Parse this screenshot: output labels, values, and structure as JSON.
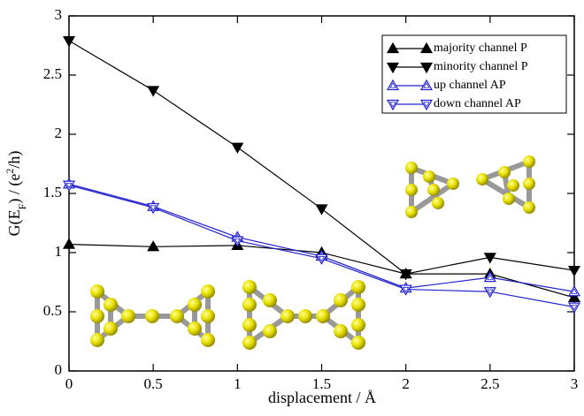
{
  "chart_data": {
    "type": "line",
    "xlabel": "displacement / Å",
    "ylabel": [
      "G(E",
      "F",
      ") / (e",
      "2",
      "/h)"
    ],
    "x": [
      0,
      0.5,
      1,
      1.5,
      2,
      2.5,
      3
    ],
    "xlim": [
      0,
      3
    ],
    "ylim": [
      0,
      3
    ],
    "xticks": [
      0,
      0.5,
      1,
      1.5,
      2,
      2.5,
      3
    ],
    "yticks": [
      0,
      0.5,
      1,
      1.5,
      2,
      2.5,
      3
    ],
    "legend": "upper right",
    "series": [
      {
        "name": "majority channel P",
        "color": "#000000",
        "marker": "up",
        "filled": true,
        "values": [
          1.07,
          1.05,
          1.06,
          1.0,
          0.82,
          0.82,
          0.62
        ]
      },
      {
        "name": "minority channel P",
        "color": "#000000",
        "marker": "down",
        "filled": true,
        "values": [
          2.79,
          2.37,
          1.89,
          1.37,
          0.82,
          0.96,
          0.85
        ]
      },
      {
        "name": "up channel AP",
        "color": "#2020d0",
        "marker": "up",
        "filled": false,
        "values": [
          1.58,
          1.39,
          1.13,
          0.97,
          0.7,
          0.79,
          0.67
        ]
      },
      {
        "name": "down channel AP",
        "color": "#2020d0",
        "marker": "down",
        "filled": false,
        "values": [
          1.57,
          1.38,
          1.1,
          0.95,
          0.69,
          0.67,
          0.54
        ]
      }
    ]
  }
}
